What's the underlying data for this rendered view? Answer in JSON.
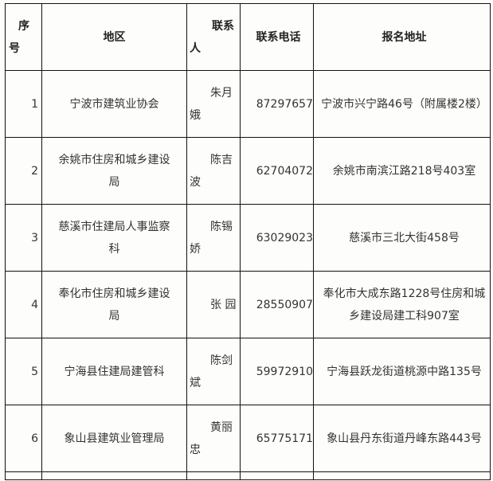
{
  "headers": {
    "no": "序号",
    "region": "地区",
    "contact": "联系人",
    "phone": "联系电话",
    "address": "报名地址"
  },
  "rows": [
    {
      "no": "1",
      "region": "宁波市建筑业协会",
      "contact": "朱月娥",
      "phone": "87297657",
      "address": "宁波市兴宁路46号（附属楼2楼）"
    },
    {
      "no": "2",
      "region": "余姚市住房和城乡建设局",
      "contact": "陈吉波",
      "phone": "62704072",
      "address": "余姚市南滨江路218号403室"
    },
    {
      "no": "3",
      "region": "慈溪市住建局人事监察科",
      "contact": "陈锡娇",
      "phone": "63029023",
      "address": "慈溪市三北大街458号"
    },
    {
      "no": "4",
      "region": "奉化市住房和城乡建设局",
      "contact": "张 园",
      "phone": "28550907",
      "address": "奉化市大成东路1228号住房和城乡建设局建工科907室"
    },
    {
      "no": "5",
      "region": "宁海县住建局建管科",
      "contact": "陈剑斌",
      "phone": "59972910",
      "address": "宁海县跃龙街道桃源中路135号"
    },
    {
      "no": "6",
      "region": "象山县建筑业管理局",
      "contact": "黄丽忠",
      "phone": "65775171",
      "address": "象山县丹东街道丹峰东路443号"
    }
  ]
}
